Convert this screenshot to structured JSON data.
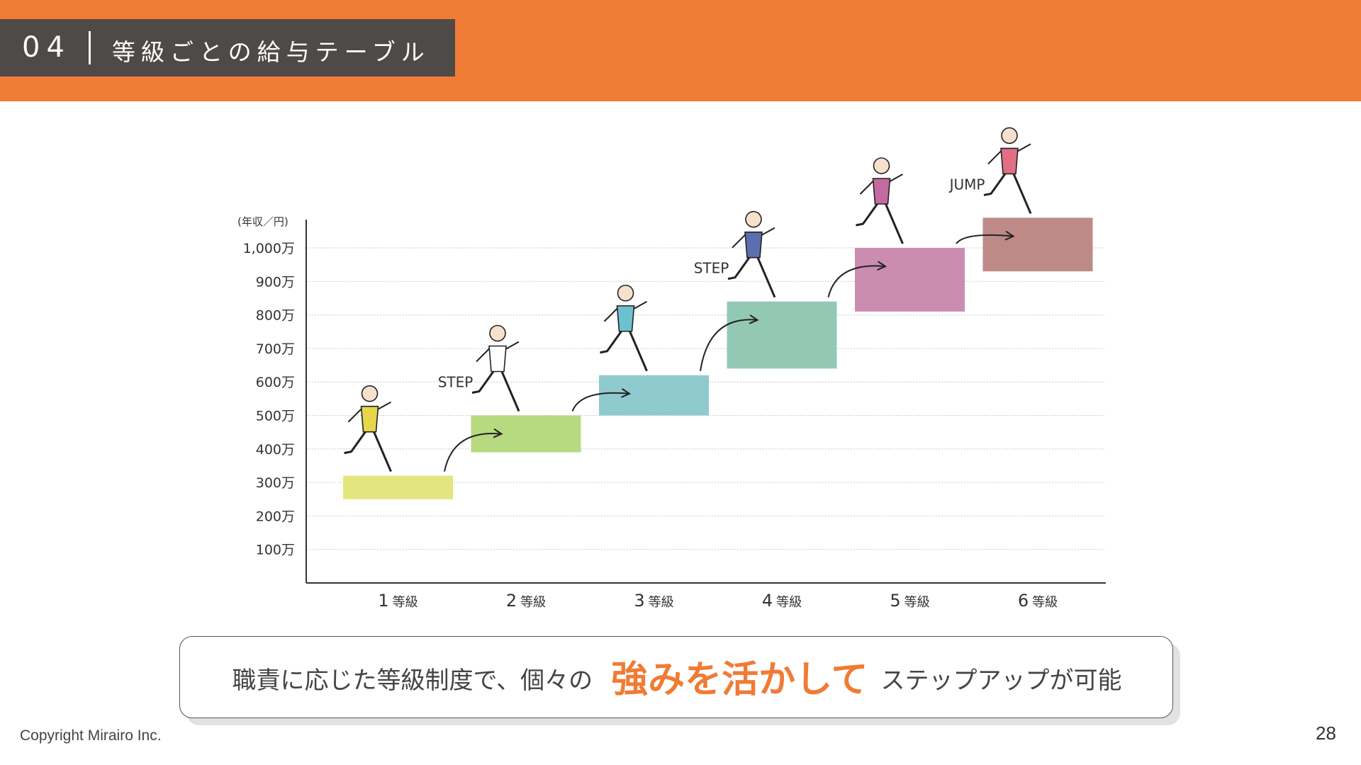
{
  "theme": {
    "accent": "#F07B34",
    "title_box_bg": "#4D4A47",
    "grid": "#C9C9C9",
    "axis": "#333333"
  },
  "header": {
    "section_number": "04",
    "title": "等級ごとの給与テーブル"
  },
  "chart_data": {
    "type": "bar",
    "title": "",
    "ylabel": "(年収／円)",
    "ylim": [
      0,
      1000
    ],
    "y_ticks": [
      {
        "value": 1000,
        "label": "1,000万"
      },
      {
        "value": 900,
        "label": "900万"
      },
      {
        "value": 800,
        "label": "800万"
      },
      {
        "value": 700,
        "label": "700万"
      },
      {
        "value": 600,
        "label": "600万"
      },
      {
        "value": 500,
        "label": "500万"
      },
      {
        "value": 400,
        "label": "400万"
      },
      {
        "value": 300,
        "label": "300万"
      },
      {
        "value": 200,
        "label": "200万"
      },
      {
        "value": 100,
        "label": "100万"
      }
    ],
    "grid": true,
    "categories": [
      {
        "num": "1",
        "unit": "等級"
      },
      {
        "num": "2",
        "unit": "等級"
      },
      {
        "num": "3",
        "unit": "等級"
      },
      {
        "num": "4",
        "unit": "等級"
      },
      {
        "num": "5",
        "unit": "等級"
      },
      {
        "num": "6",
        "unit": "等級"
      }
    ],
    "ranges": [
      {
        "low": 250,
        "high": 320,
        "color": "#E3E57E"
      },
      {
        "low": 390,
        "high": 500,
        "color": "#B7D97F"
      },
      {
        "low": 500,
        "high": 620,
        "color": "#8FCACE"
      },
      {
        "low": 640,
        "high": 840,
        "color": "#93C8B4"
      },
      {
        "low": 810,
        "high": 1000,
        "color": "#CA8DAF"
      },
      {
        "low": 930,
        "high": 1090,
        "color": "#BD8A87"
      }
    ],
    "annotations": [
      {
        "text": "STEP",
        "after_category": 1
      },
      {
        "text": "STEP",
        "after_category": 3
      },
      {
        "text": "JUMP",
        "after_category": 5
      }
    ]
  },
  "callout": {
    "prefix": "職責に応じた等級制度で、個々の",
    "emphasis": "強みを活かして",
    "suffix": "ステップアップが可能"
  },
  "footer": {
    "copyright": "Copyright Mirairo Inc.",
    "page_number": "28"
  }
}
